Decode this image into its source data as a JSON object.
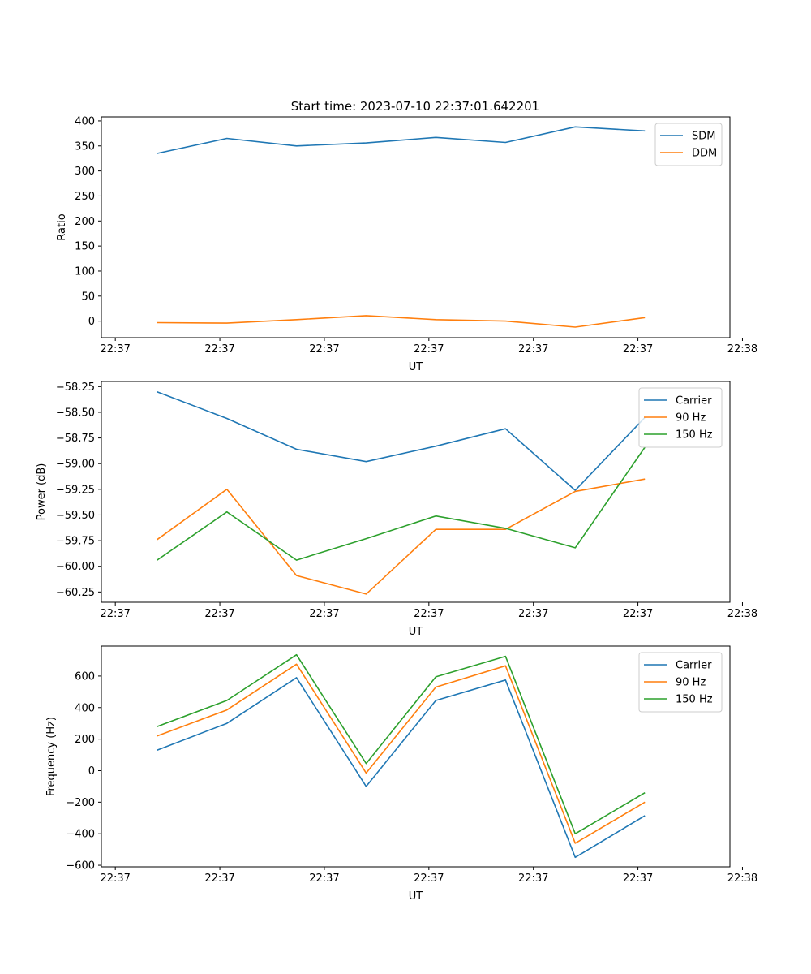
{
  "figure_title": "Start time: 2023-07-10 22:37:01.642201",
  "colors": {
    "blue": "#1f77b4",
    "orange": "#ff7f0e",
    "green": "#2ca02c"
  },
  "chart_data": [
    {
      "type": "line",
      "title": "Start time: 2023-07-10 22:37:01.642201",
      "xlabel": "UT",
      "ylabel": "Ratio",
      "x": [
        1,
        2,
        3,
        4,
        5,
        6,
        7,
        8
      ],
      "xlim": [
        0.2,
        9.22
      ],
      "xticks": [
        0.4,
        1.9,
        3.4,
        4.9,
        6.4,
        7.9,
        9.4
      ],
      "xtick_labels": [
        "22:37",
        "22:37",
        "22:37",
        "22:37",
        "22:37",
        "22:37",
        "22:38"
      ],
      "ylim": [
        -33,
        408
      ],
      "yticks": [
        0,
        50,
        100,
        150,
        200,
        250,
        300,
        350,
        400
      ],
      "ytick_labels": [
        "0",
        "50",
        "100",
        "150",
        "200",
        "250",
        "300",
        "350",
        "400"
      ],
      "legend_position": "top-right",
      "series": [
        {
          "name": "SDM",
          "color": "#1f77b4",
          "values": [
            335,
            365,
            350,
            356,
            367,
            357,
            388,
            380
          ]
        },
        {
          "name": "DDM",
          "color": "#ff7f0e",
          "values": [
            -3,
            -4,
            3,
            11,
            3,
            0,
            -12,
            7
          ]
        }
      ]
    },
    {
      "type": "line",
      "xlabel": "UT",
      "ylabel": "Power (dB)",
      "x": [
        1,
        2,
        3,
        4,
        5,
        6,
        7,
        8
      ],
      "xlim": [
        0.2,
        9.22
      ],
      "xticks": [
        0.4,
        1.9,
        3.4,
        4.9,
        6.4,
        7.9,
        9.4
      ],
      "xtick_labels": [
        "22:37",
        "22:37",
        "22:37",
        "22:37",
        "22:37",
        "22:37",
        "22:38"
      ],
      "ylim": [
        -60.35,
        -58.2
      ],
      "yticks": [
        -58.25,
        -58.5,
        -58.75,
        -59.0,
        -59.25,
        -59.5,
        -59.75,
        -60.0,
        -60.25
      ],
      "ytick_labels": [
        "−58.25",
        "−58.50",
        "−58.75",
        "−59.00",
        "−59.25",
        "−59.50",
        "−59.75",
        "−60.00",
        "−60.25"
      ],
      "legend_position": "top-right",
      "series": [
        {
          "name": "Carrier",
          "color": "#1f77b4",
          "values": [
            -58.3,
            -58.56,
            -58.86,
            -58.98,
            -58.83,
            -58.66,
            -59.26,
            -58.55
          ]
        },
        {
          "name": "90 Hz",
          "color": "#ff7f0e",
          "values": [
            -59.74,
            -59.25,
            -60.09,
            -60.27,
            -59.64,
            -59.64,
            -59.27,
            -59.15
          ]
        },
        {
          "name": "150 Hz",
          "color": "#2ca02c",
          "values": [
            -59.94,
            -59.47,
            -59.94,
            -59.73,
            -59.51,
            -59.63,
            -59.82,
            -58.84
          ]
        }
      ]
    },
    {
      "type": "line",
      "xlabel": "UT",
      "ylabel": "Frequency (Hz)",
      "x": [
        1,
        2,
        3,
        4,
        5,
        6,
        7,
        8
      ],
      "xlim": [
        0.2,
        9.22
      ],
      "xticks": [
        0.4,
        1.9,
        3.4,
        4.9,
        6.4,
        7.9,
        9.4
      ],
      "xtick_labels": [
        "22:37",
        "22:37",
        "22:37",
        "22:37",
        "22:37",
        "22:37",
        "22:38"
      ],
      "ylim": [
        -610,
        790
      ],
      "yticks": [
        600,
        400,
        200,
        0,
        -200,
        -400,
        -600
      ],
      "ytick_labels": [
        "600",
        "400",
        "200",
        "0",
        "−200",
        "−400",
        "−600"
      ],
      "legend_position": "top-right",
      "series": [
        {
          "name": "Carrier",
          "color": "#1f77b4",
          "values": [
            130,
            300,
            590,
            -100,
            445,
            575,
            -550,
            -285
          ]
        },
        {
          "name": "90 Hz",
          "color": "#ff7f0e",
          "values": [
            220,
            385,
            675,
            -15,
            530,
            665,
            -460,
            -200
          ]
        },
        {
          "name": "150 Hz",
          "color": "#2ca02c",
          "values": [
            280,
            445,
            735,
            45,
            595,
            725,
            -400,
            -140
          ]
        }
      ]
    }
  ]
}
